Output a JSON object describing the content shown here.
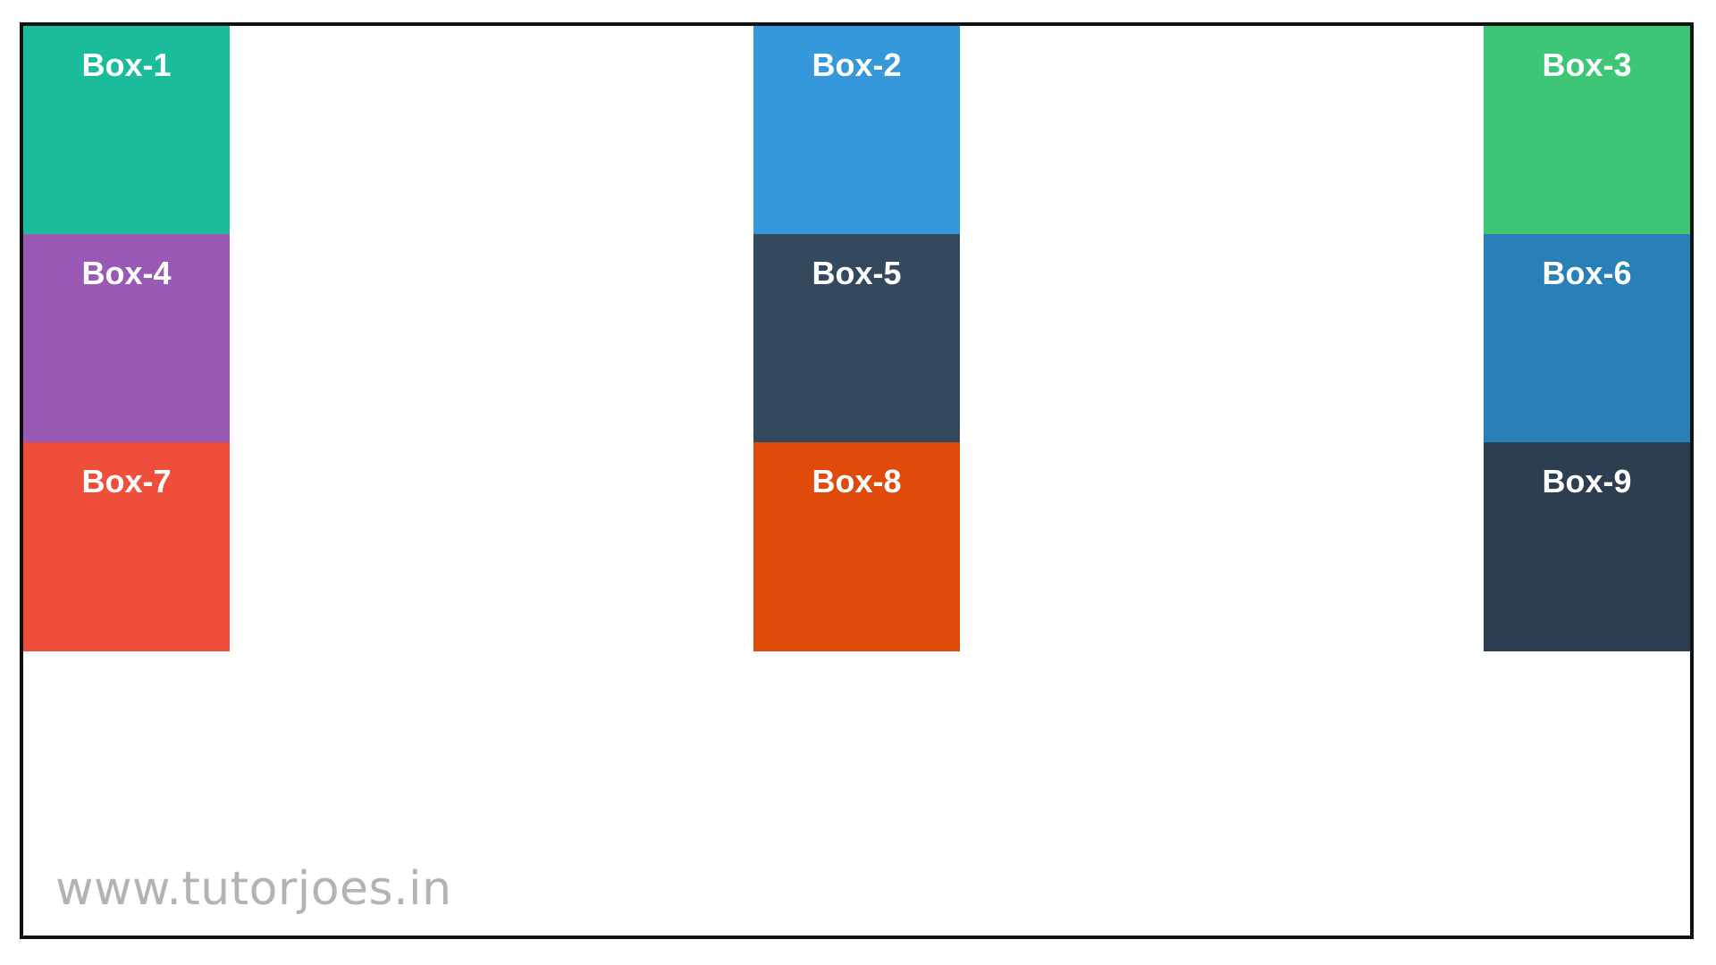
{
  "boxes": [
    {
      "label": "Box-1",
      "color": "#1abc9c"
    },
    {
      "label": "Box-2",
      "color": "#3498db"
    },
    {
      "label": "Box-3",
      "color": "#3cc676"
    },
    {
      "label": "Box-4",
      "color": "#9b59b6"
    },
    {
      "label": "Box-5",
      "color": "#34495e"
    },
    {
      "label": "Box-6",
      "color": "#2980b9"
    },
    {
      "label": "Box-7",
      "color": "#ef4e3a"
    },
    {
      "label": "Box-8",
      "color": "#e04b0a"
    },
    {
      "label": "Box-9",
      "color": "#2c3e50"
    }
  ],
  "watermark": "www.tutorjoes.in"
}
